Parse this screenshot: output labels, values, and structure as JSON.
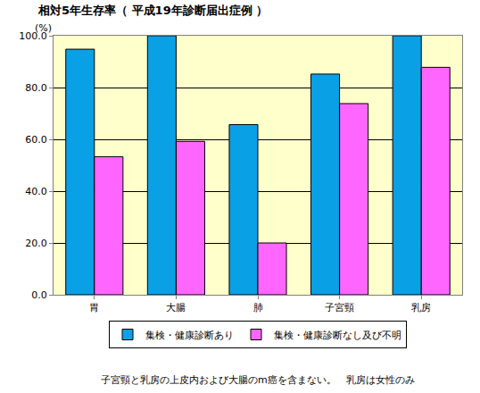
{
  "chart_data": {
    "type": "bar",
    "title": "相対5年生存率（ 平成19年診断届出症例 ）",
    "y_label": "(%)",
    "categories": [
      "胃",
      "大腸",
      "肺",
      "子宮頸",
      "乳房"
    ],
    "series": [
      {
        "name": "集検・健康診断あり",
        "color": "#0aa0e6",
        "values": [
          94.8,
          100,
          65.7,
          85.2,
          100
        ]
      },
      {
        "name": "集検・健康診断なし及び不明",
        "color": "#ff66ff",
        "values": [
          53.3,
          59.2,
          20.0,
          73.8,
          87.8
        ]
      }
    ],
    "ylim": [
      0,
      100
    ],
    "yticks": [
      {
        "value": 0,
        "label": "0.0"
      },
      {
        "value": 20,
        "label": "20.0"
      },
      {
        "value": 40,
        "label": "40.0"
      },
      {
        "value": 60,
        "label": "60.0"
      },
      {
        "value": 80,
        "label": "80.0"
      },
      {
        "value": 100,
        "label": "100.0"
      }
    ],
    "grid": true,
    "legend": "bottom",
    "annotations": [
      "子宮頸と乳房の上皮内および大腸のm癌を含まない。　乳房は女性のみ"
    ]
  }
}
